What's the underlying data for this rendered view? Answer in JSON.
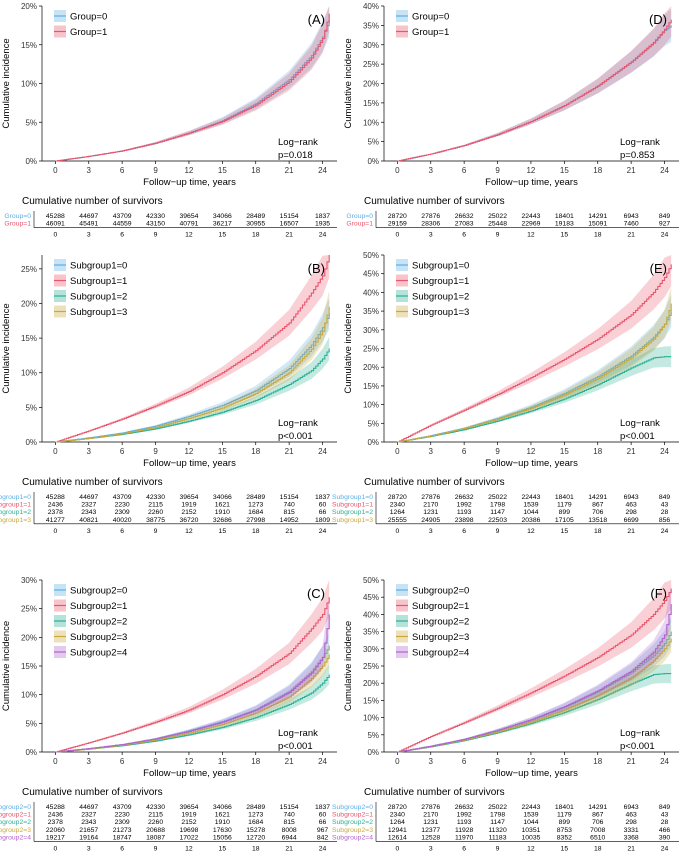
{
  "x_axis_title": "Follow−up time, years",
  "y_axis_title": "Cumulative incidence",
  "risk_table_title": "Cumulative number of survivors",
  "x_tick_labels": [
    "0",
    "3",
    "6",
    "9",
    "12",
    "15",
    "18",
    "21",
    "24"
  ],
  "palette": {
    "g0": "#5eaee4",
    "g1": "#e8556d",
    "g2": "#2ab093",
    "g3": "#c9a93b",
    "g4": "#b063cc"
  },
  "chart_data": [
    {
      "type": "line",
      "panel": "(A)",
      "ylim": [
        0,
        20
      ],
      "y_ticks": [
        "0%",
        "5%",
        "10%",
        "15%",
        "20%"
      ],
      "x": [
        0,
        3,
        6,
        9,
        12,
        15,
        18,
        21,
        23,
        24,
        24.6
      ],
      "series": [
        {
          "name": "Group=0",
          "values": [
            0,
            0.6,
            1.3,
            2.3,
            3.6,
            5.2,
            7.4,
            10.5,
            13.6,
            16.0,
            18.2
          ]
        },
        {
          "name": "Group=1",
          "values": [
            0,
            0.6,
            1.3,
            2.3,
            3.6,
            5.1,
            7.2,
            10.2,
            13.3,
            15.8,
            19.0
          ]
        }
      ],
      "stat_label": "Log−rank",
      "p_value": "p=0.018",
      "risk_table": {
        "times": [
          "0",
          "3",
          "6",
          "9",
          "12",
          "15",
          "18",
          "21",
          "24"
        ],
        "rows": [
          {
            "name": "Group=0",
            "values": [
              "45288",
              "44697",
              "43709",
              "42330",
              "39654",
              "34066",
              "28489",
              "15154",
              "1837"
            ]
          },
          {
            "name": "Group=1",
            "values": [
              "46091",
              "45491",
              "44559",
              "43150",
              "40791",
              "36217",
              "30955",
              "16507",
              "1935"
            ]
          }
        ]
      }
    },
    {
      "type": "line",
      "panel": "(D)",
      "ylim": [
        0,
        40
      ],
      "y_ticks": [
        "0%",
        "5%",
        "10%",
        "15%",
        "20%",
        "25%",
        "30%",
        "35%",
        "40%"
      ],
      "x": [
        0,
        3,
        6,
        9,
        12,
        15,
        18,
        21,
        23,
        24,
        24.6
      ],
      "series": [
        {
          "name": "Group=0",
          "values": [
            0,
            1.8,
            4.0,
            6.8,
            10.2,
            14.3,
            19.3,
            25.5,
            30.4,
            33.7,
            35.0
          ]
        },
        {
          "name": "Group=1",
          "values": [
            0,
            1.8,
            4.0,
            6.8,
            10.2,
            14.3,
            19.4,
            25.6,
            30.6,
            34.0,
            36.5
          ]
        }
      ],
      "stat_label": "Log−rank",
      "p_value": "p=0.853",
      "risk_table": {
        "times": [
          "0",
          "3",
          "6",
          "9",
          "12",
          "15",
          "18",
          "21",
          "24"
        ],
        "rows": [
          {
            "name": "Group=0",
            "values": [
              "28720",
              "27876",
              "26632",
              "25022",
              "22443",
              "18401",
              "14291",
              "6943",
              "849"
            ]
          },
          {
            "name": "Group=1",
            "values": [
              "29159",
              "28306",
              "27083",
              "25448",
              "22969",
              "19183",
              "15091",
              "7460",
              "927"
            ]
          }
        ]
      }
    },
    {
      "type": "line",
      "panel": "(B)",
      "ylim": [
        0,
        27
      ],
      "y_ticks": [
        "0%",
        "5%",
        "10%",
        "15%",
        "20%",
        "25%"
      ],
      "x": [
        0,
        3,
        6,
        9,
        12,
        15,
        18,
        21,
        23,
        24,
        24.6
      ],
      "series": [
        {
          "name": "Subgroup1=0",
          "values": [
            0,
            0.6,
            1.3,
            2.3,
            3.7,
            5.3,
            7.4,
            10.6,
            14.0,
            16.5,
            18.5
          ]
        },
        {
          "name": "Subgroup1=1",
          "values": [
            0,
            1.6,
            3.3,
            5.2,
            7.3,
            10.0,
            13.2,
            17.2,
            21.5,
            24.0,
            27.0
          ]
        },
        {
          "name": "Subgroup1=2",
          "values": [
            0,
            0.5,
            1.1,
            1.9,
            3.0,
            4.3,
            6.0,
            8.3,
            10.3,
            12.0,
            13.5
          ]
        },
        {
          "name": "Subgroup1=3",
          "values": [
            0,
            0.5,
            1.2,
            2.1,
            3.4,
            4.9,
            7.0,
            10.0,
            13.4,
            16.0,
            19.5
          ]
        }
      ],
      "stat_label": "Log−rank",
      "p_value": "p<0.001",
      "risk_table": {
        "times": [
          "0",
          "3",
          "6",
          "9",
          "12",
          "15",
          "18",
          "21",
          "24"
        ],
        "rows": [
          {
            "name": "Subgroup1=0",
            "values": [
              "45288",
              "44697",
              "43709",
              "42330",
              "39654",
              "34066",
              "28489",
              "15154",
              "1837"
            ]
          },
          {
            "name": "Subgroup1=1",
            "values": [
              "2436",
              "2327",
              "2230",
              "2115",
              "1919",
              "1621",
              "1273",
              "740",
              "60"
            ]
          },
          {
            "name": "Subgroup1=2",
            "values": [
              "2378",
              "2343",
              "2309",
              "2260",
              "2152",
              "1910",
              "1684",
              "815",
              "66"
            ]
          },
          {
            "name": "Subgroup1=3",
            "values": [
              "41277",
              "40821",
              "40020",
              "38775",
              "36720",
              "32686",
              "27998",
              "14952",
              "1809"
            ]
          }
        ]
      }
    },
    {
      "type": "line",
      "panel": "(E)",
      "ylim": [
        0,
        50
      ],
      "y_ticks": [
        "0%",
        "5%",
        "10%",
        "15%",
        "20%",
        "25%",
        "30%",
        "35%",
        "40%",
        "45%",
        "50%"
      ],
      "x": [
        0,
        3,
        6,
        9,
        12,
        15,
        18,
        21,
        23,
        24,
        24.6
      ],
      "series": [
        {
          "name": "Subgroup1=0",
          "values": [
            0,
            1.7,
            3.7,
            6.3,
            9.3,
            13.0,
            17.5,
            23.0,
            28.0,
            31.5,
            35.0
          ]
        },
        {
          "name": "Subgroup1=1",
          "values": [
            0,
            4.5,
            8.5,
            12.7,
            17.2,
            22.1,
            27.5,
            34.0,
            40.0,
            44.0,
            47.5
          ]
        },
        {
          "name": "Subgroup1=2",
          "values": [
            0,
            1.5,
            3.3,
            5.6,
            8.3,
            11.5,
            15.3,
            19.8,
            22.5,
            22.8,
            22.8
          ]
        },
        {
          "name": "Subgroup1=3",
          "values": [
            0,
            1.6,
            3.6,
            6.1,
            9.0,
            12.6,
            17.0,
            22.5,
            27.5,
            31.5,
            37.0
          ]
        }
      ],
      "stat_label": "Log−rank",
      "p_value": "p<0.001",
      "risk_table": {
        "times": [
          "0",
          "3",
          "6",
          "9",
          "12",
          "15",
          "18",
          "21",
          "24"
        ],
        "rows": [
          {
            "name": "Subgroup1=0",
            "values": [
              "28720",
              "27876",
              "26632",
              "25022",
              "22443",
              "18401",
              "14291",
              "6943",
              "849"
            ]
          },
          {
            "name": "Subgroup1=1",
            "values": [
              "2340",
              "2170",
              "1992",
              "1798",
              "1539",
              "1179",
              "867",
              "463",
              "43"
            ]
          },
          {
            "name": "Subgroup1=2",
            "values": [
              "1264",
              "1231",
              "1193",
              "1147",
              "1044",
              "899",
              "706",
              "298",
              "28"
            ]
          },
          {
            "name": "Subgroup1=3",
            "values": [
              "25555",
              "24905",
              "23898",
              "22503",
              "20386",
              "17105",
              "13518",
              "6699",
              "856"
            ]
          }
        ]
      }
    },
    {
      "type": "line",
      "panel": "(C)",
      "ylim": [
        0,
        30
      ],
      "y_ticks": [
        "0%",
        "5%",
        "10%",
        "15%",
        "20%",
        "25%",
        "30%"
      ],
      "x": [
        0,
        3,
        6,
        9,
        12,
        15,
        18,
        21,
        23,
        24,
        24.6
      ],
      "series": [
        {
          "name": "Subgroup2=0",
          "values": [
            0,
            0.6,
            1.3,
            2.3,
            3.7,
            5.3,
            7.4,
            10.6,
            14.0,
            16.5,
            18.5
          ]
        },
        {
          "name": "Subgroup2=1",
          "values": [
            0,
            1.6,
            3.3,
            5.2,
            7.3,
            10.0,
            13.2,
            17.2,
            21.5,
            24.0,
            27.0
          ]
        },
        {
          "name": "Subgroup2=2",
          "values": [
            0,
            0.5,
            1.1,
            1.9,
            3.0,
            4.3,
            6.0,
            8.3,
            10.3,
            12.0,
            13.5
          ]
        },
        {
          "name": "Subgroup2=3",
          "values": [
            0,
            0.5,
            1.2,
            2.1,
            3.3,
            4.8,
            6.8,
            9.6,
            12.8,
            15.0,
            17.0
          ]
        },
        {
          "name": "Subgroup2=4",
          "values": [
            0,
            0.6,
            1.3,
            2.3,
            3.6,
            5.2,
            7.3,
            10.4,
            13.8,
            16.5,
            24.0
          ]
        }
      ],
      "stat_label": "Log−rank",
      "p_value": "p<0.001",
      "risk_table": {
        "times": [
          "0",
          "3",
          "6",
          "9",
          "12",
          "15",
          "18",
          "21",
          "24"
        ],
        "rows": [
          {
            "name": "Subgroup2=0",
            "values": [
              "45288",
              "44697",
              "43709",
              "42330",
              "39654",
              "34066",
              "28489",
              "15154",
              "1837"
            ]
          },
          {
            "name": "Subgroup2=1",
            "values": [
              "2436",
              "2327",
              "2230",
              "2115",
              "1919",
              "1621",
              "1273",
              "740",
              "60"
            ]
          },
          {
            "name": "Subgroup2=2",
            "values": [
              "2378",
              "2343",
              "2309",
              "2260",
              "2152",
              "1910",
              "1684",
              "815",
              "66"
            ]
          },
          {
            "name": "Subgroup2=3",
            "values": [
              "22060",
              "21657",
              "21273",
              "20688",
              "19698",
              "17630",
              "15278",
              "8008",
              "967"
            ]
          },
          {
            "name": "Subgroup2=4",
            "values": [
              "19217",
              "19164",
              "18747",
              "18087",
              "17022",
              "15056",
              "12720",
              "6944",
              "842"
            ]
          }
        ]
      }
    },
    {
      "type": "line",
      "panel": "(F)",
      "ylim": [
        0,
        50
      ],
      "y_ticks": [
        "0%",
        "5%",
        "10%",
        "15%",
        "20%",
        "25%",
        "30%",
        "35%",
        "40%",
        "45%",
        "50%"
      ],
      "x": [
        0,
        3,
        6,
        9,
        12,
        15,
        18,
        21,
        23,
        24,
        24.6
      ],
      "series": [
        {
          "name": "Subgroup2=0",
          "values": [
            0,
            1.7,
            3.7,
            6.3,
            9.3,
            13.0,
            17.5,
            23.0,
            28.0,
            31.5,
            35.0
          ]
        },
        {
          "name": "Subgroup2=1",
          "values": [
            0,
            4.5,
            8.5,
            12.7,
            17.2,
            22.1,
            27.5,
            34.0,
            40.0,
            44.0,
            47.5
          ]
        },
        {
          "name": "Subgroup2=2",
          "values": [
            0,
            1.5,
            3.3,
            5.6,
            8.3,
            11.5,
            15.3,
            19.8,
            22.5,
            22.8,
            22.8
          ]
        },
        {
          "name": "Subgroup2=3",
          "values": [
            0,
            1.6,
            3.5,
            5.9,
            8.7,
            12.2,
            16.4,
            21.5,
            26.5,
            30.0,
            33.0
          ]
        },
        {
          "name": "Subgroup2=4",
          "values": [
            0,
            1.7,
            3.7,
            6.3,
            9.4,
            13.2,
            17.8,
            23.5,
            29.0,
            34.0,
            43.0
          ]
        }
      ],
      "stat_label": "Log−rank",
      "p_value": "p<0.001",
      "risk_table": {
        "times": [
          "0",
          "3",
          "6",
          "9",
          "12",
          "15",
          "18",
          "21",
          "24"
        ],
        "rows": [
          {
            "name": "Subgroup2=0",
            "values": [
              "28720",
              "27876",
              "26632",
              "25022",
              "22443",
              "18401",
              "14291",
              "6943",
              "849"
            ]
          },
          {
            "name": "Subgroup2=1",
            "values": [
              "2340",
              "2170",
              "1992",
              "1798",
              "1539",
              "1179",
              "867",
              "463",
              "43"
            ]
          },
          {
            "name": "Subgroup2=2",
            "values": [
              "1264",
              "1231",
              "1193",
              "1147",
              "1044",
              "899",
              "706",
              "298",
              "28"
            ]
          },
          {
            "name": "Subgroup2=3",
            "values": [
              "12941",
              "12377",
              "11928",
              "11320",
              "10351",
              "8753",
              "7008",
              "3331",
              "466"
            ]
          },
          {
            "name": "Subgroup2=4",
            "values": [
              "12614",
              "12528",
              "11970",
              "11183",
              "10035",
              "8352",
              "6510",
              "3368",
              "390"
            ]
          }
        ]
      }
    }
  ]
}
